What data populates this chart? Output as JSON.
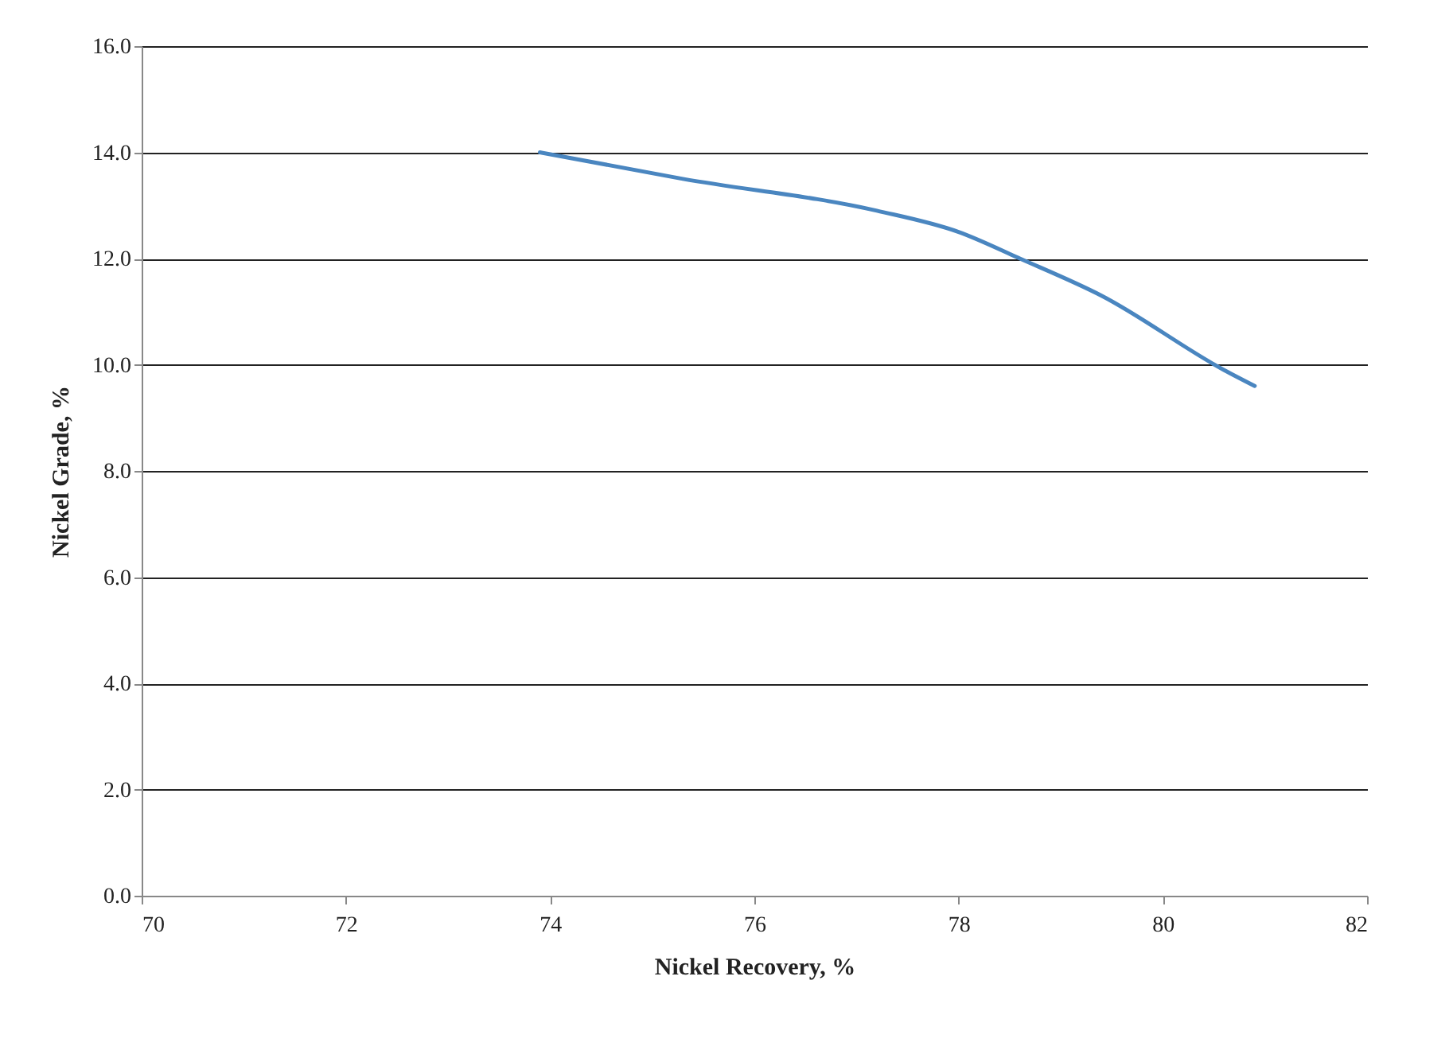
{
  "chart_data": {
    "type": "line",
    "xlabel": "Nickel Recovery, %",
    "ylabel": "Nickel Grade, %",
    "x": [
      73.9,
      75.3,
      77.2,
      78.0,
      78.6,
      79.4,
      80.6,
      80.9
    ],
    "series": [
      {
        "color": "#4a86c0",
        "values": [
          14.0,
          13.5,
          12.9,
          12.5,
          12.0,
          11.3,
          9.9,
          9.6
        ]
      }
    ],
    "xlim": [
      70,
      82
    ],
    "xticks": [
      70,
      72,
      74,
      76,
      78,
      80,
      82
    ],
    "ylim": [
      0,
      16
    ],
    "yticks": [
      {
        "value": 0,
        "label": "0.0"
      },
      {
        "value": 2,
        "label": "2.0"
      },
      {
        "value": 4,
        "label": "4.0"
      },
      {
        "value": 6,
        "label": "6.0"
      },
      {
        "value": 8,
        "label": "8.0"
      },
      {
        "value": 10,
        "label": "10.0"
      },
      {
        "value": 12,
        "label": "12.0"
      },
      {
        "value": 14,
        "label": "14.0"
      },
      {
        "value": 16,
        "label": "16.0"
      }
    ],
    "grid": "y"
  }
}
